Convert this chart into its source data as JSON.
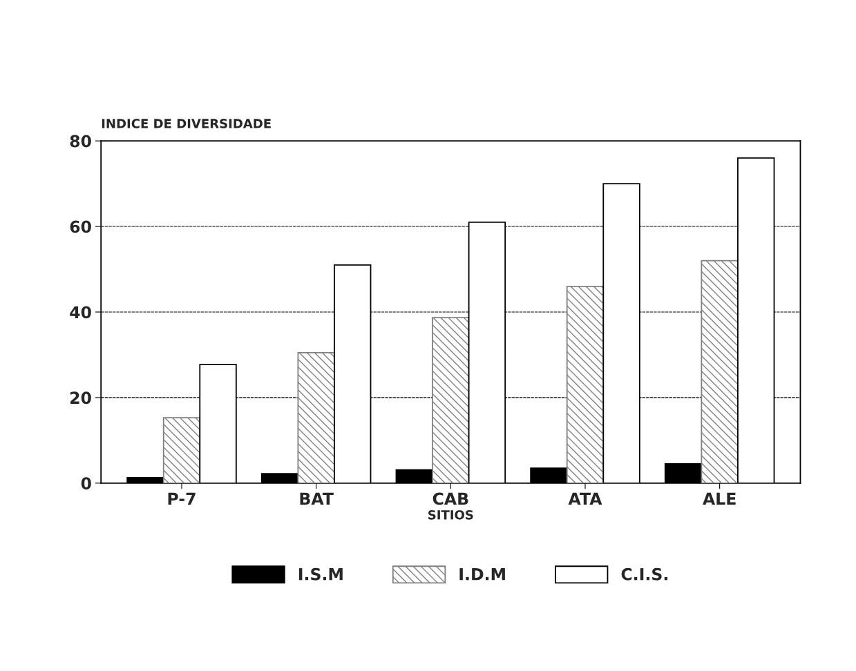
{
  "chart_data": {
    "type": "bar",
    "ylabel": "INDICE DE DIVERSIDADE",
    "xlabel": "SITIOS",
    "categories": [
      "P-7",
      "BAT",
      "CAB",
      "ATA",
      "ALE"
    ],
    "series": [
      {
        "name": "I.S.M",
        "color": "#000000",
        "values": [
          1.3,
          2.2,
          3.1,
          3.5,
          4.5
        ]
      },
      {
        "name": "I.D.M",
        "color": "#808080",
        "values": [
          15.3,
          30.5,
          38.7,
          46,
          52
        ]
      },
      {
        "name": "C.I.S.",
        "color": "#ffffff",
        "values": [
          27.7,
          51,
          61,
          70,
          76
        ]
      }
    ],
    "ylim": [
      0,
      80
    ],
    "yticks": [
      0,
      20,
      40,
      60,
      80
    ],
    "grid": "y",
    "legend": "bottom"
  }
}
